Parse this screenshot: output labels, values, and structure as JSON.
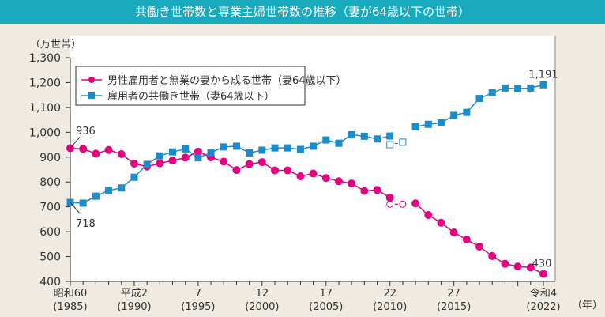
{
  "chart_data": {
    "type": "line",
    "title": "共働き世帯数と専業主婦世帯数の推移（妻が64歳以下の世帯）",
    "ylabel": "（万世帯）",
    "xlabel_unit": "（年）",
    "ylim": [
      400,
      1300
    ],
    "yticks": [
      "400",
      "500",
      "600",
      "700",
      "800",
      "900",
      "1,000",
      "1,100",
      "1,200",
      "1,300"
    ],
    "x": [
      1985,
      1986,
      1987,
      1988,
      1989,
      1990,
      1991,
      1992,
      1993,
      1994,
      1995,
      1996,
      1997,
      1998,
      1999,
      2000,
      2001,
      2002,
      2003,
      2004,
      2005,
      2006,
      2007,
      2008,
      2009,
      2010,
      2011,
      2012,
      2013,
      2014,
      2015,
      2016,
      2017,
      2018,
      2019,
      2020,
      2021,
      2022
    ],
    "xticks": [
      {
        "year": 1985,
        "era": "昭和60",
        "ad": "(1985)"
      },
      {
        "year": 1990,
        "era": "平成2",
        "ad": "(1990)"
      },
      {
        "year": 1995,
        "era": "7",
        "ad": "(1995)"
      },
      {
        "year": 2000,
        "era": "12",
        "ad": "(2000)"
      },
      {
        "year": 2005,
        "era": "17",
        "ad": "(2005)"
      },
      {
        "year": 2010,
        "era": "22",
        "ad": "(2010)"
      },
      {
        "year": 2015,
        "era": "27",
        "ad": "(2015)"
      },
      {
        "year": 2022,
        "era": "令和4",
        "ad": "(2022)"
      }
    ],
    "series": [
      {
        "name": "男性雇用者と無業の妻から成る世帯（妻64歳以下）",
        "color": "#E4007F",
        "marker": "circle",
        "values": [
          936,
          933,
          914,
          929,
          912,
          874,
          862,
          875,
          886,
          898,
          922,
          899,
          882,
          848,
          872,
          880,
          847,
          847,
          823,
          834,
          816,
          803,
          794,
          764,
          768,
          737,
          null,
          714,
          667,
          636,
          597,
          568,
          540,
          502,
          471,
          460,
          456,
          430
        ],
        "reference_points": [
          {
            "x": 2010,
            "y": 711
          },
          {
            "x": 2011,
            "y": 711
          }
        ]
      },
      {
        "name": "雇用者の共働き世帯（妻64歳以下）",
        "color": "#1B8CCB",
        "marker": "square",
        "values": [
          718,
          715,
          743,
          766,
          776,
          819,
          871,
          905,
          921,
          933,
          897,
          918,
          941,
          944,
          917,
          928,
          937,
          937,
          931,
          944,
          969,
          956,
          990,
          984,
          973,
          985,
          null,
          1022,
          1032,
          1038,
          1068,
          1080,
          1136,
          1159,
          1178,
          1175,
          1178,
          1191
        ],
        "reference_points": [
          {
            "x": 2010,
            "y": 950
          },
          {
            "x": 2011,
            "y": 960
          }
        ]
      }
    ],
    "annotations": [
      {
        "series": 0,
        "x": 1985,
        "label": "936"
      },
      {
        "series": 1,
        "x": 1985,
        "label": "718"
      },
      {
        "series": 1,
        "x": 2022,
        "label": "1,191"
      },
      {
        "series": 0,
        "x": 2022,
        "label": "430"
      }
    ],
    "grid": false,
    "legend_position": "top-left"
  }
}
